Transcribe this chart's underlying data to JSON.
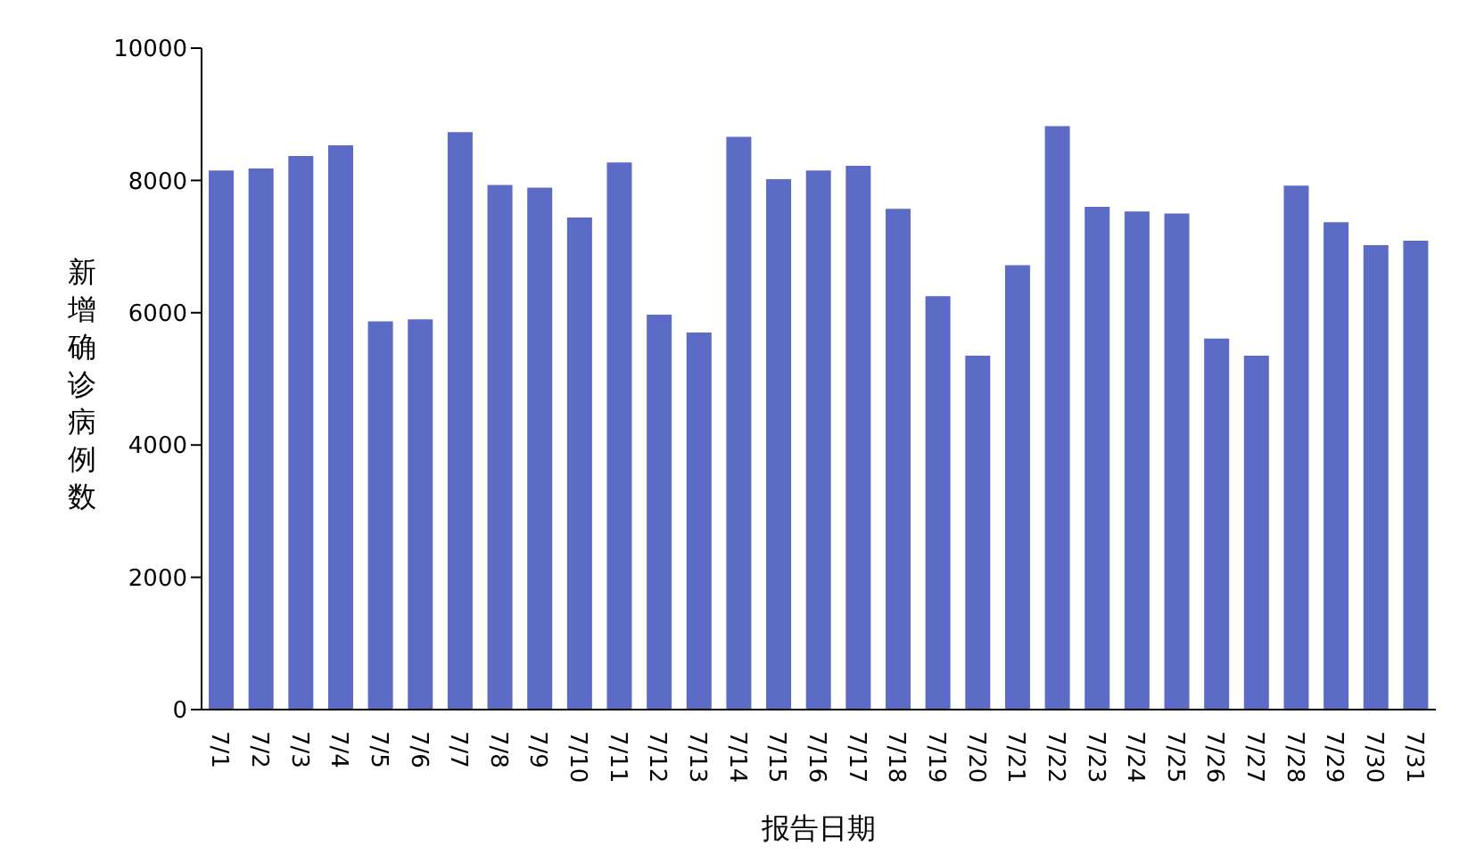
{
  "chart_data": {
    "type": "bar",
    "xlabel": "报告日期",
    "ylabel": "新增确诊病例数",
    "categories": [
      "7/1",
      "7/2",
      "7/3",
      "7/4",
      "7/5",
      "7/6",
      "7/7",
      "7/8",
      "7/9",
      "7/10",
      "7/11",
      "7/12",
      "7/13",
      "7/14",
      "7/15",
      "7/16",
      "7/17",
      "7/18",
      "7/19",
      "7/20",
      "7/21",
      "7/22",
      "7/23",
      "7/24",
      "7/25",
      "7/26",
      "7/27",
      "7/28",
      "7/29",
      "7/30",
      "7/31"
    ],
    "values": [
      8150,
      8180,
      8370,
      8530,
      5870,
      5900,
      8730,
      7930,
      7890,
      7440,
      8270,
      5970,
      5700,
      8660,
      8020,
      8150,
      8220,
      7570,
      6250,
      5350,
      6720,
      8820,
      7600,
      7530,
      7500,
      5610,
      5350,
      7920,
      7370,
      7020,
      7090
    ],
    "color": "#5b6bc6",
    "ylim": [
      0,
      10000
    ],
    "yticks": [
      0,
      2000,
      4000,
      6000,
      8000,
      10000
    ],
    "grid": false,
    "legend": false
  }
}
